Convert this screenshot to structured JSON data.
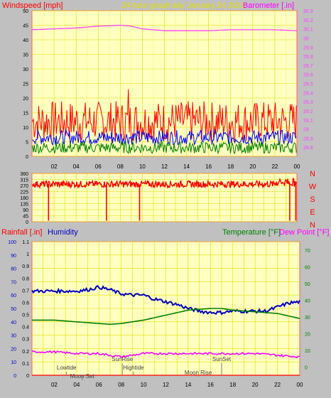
{
  "header": {
    "windspeed_label": "Windspeed [mph]",
    "title": "24 hour graph day   January 24 2021",
    "barometer_label": "Barometer [.in]"
  },
  "colors": {
    "background": "#c0c0c0",
    "plot_bg": "#ffffc0",
    "grid": "#e0e000",
    "axis": "#ff6060",
    "wind_gust": "#ff0000",
    "wind_avg": "#0000ff",
    "wind_low": "#008000",
    "barometer": "#ff40ff",
    "direction": "#ff0000",
    "humidity": "#0000c0",
    "temperature": "#008000",
    "dew_point": "#ff00ff",
    "rainfall": "#ff0000"
  },
  "chart_data": [
    {
      "type": "line",
      "name": "wind-barometer",
      "x_ticks": [
        "02",
        "04",
        "06",
        "08",
        "10",
        "12",
        "14",
        "16",
        "18",
        "20",
        "22",
        "00"
      ],
      "y_left_ticks": [
        "0",
        "5",
        "10",
        "15",
        "20",
        "25",
        "30",
        "35",
        "40",
        "45",
        "50"
      ],
      "y_left_range": [
        0,
        50
      ],
      "y_right_ticks": [
        "28.8",
        "28.9",
        "29",
        "29.1",
        "29.2",
        "29.3",
        "29.4",
        "29.5",
        "29.6",
        "29.7",
        "29.8",
        "29.9",
        "30",
        "30.1",
        "30.2",
        "30.3"
      ],
      "y_right_range": [
        28.7,
        30.3
      ],
      "grid": true,
      "series": [
        {
          "name": "Windspeed gust",
          "level": 12,
          "spread": 7,
          "peak": {
            "x": 8.75,
            "y": 23
          }
        },
        {
          "name": "Windspeed avg",
          "level": 6.5,
          "spread": 2.5
        },
        {
          "name": "Windspeed low",
          "level": 3,
          "spread": 2
        },
        {
          "name": "Barometer",
          "x": [
            0,
            2,
            4,
            6,
            8,
            9,
            10,
            12,
            14,
            16,
            18,
            20,
            22,
            24
          ],
          "y": [
            30.09,
            30.1,
            30.11,
            30.13,
            30.14,
            30.13,
            30.1,
            30.08,
            30.08,
            30.08,
            30.09,
            30.09,
            30.09,
            30.08
          ]
        }
      ]
    },
    {
      "type": "scatter",
      "name": "wind-direction",
      "y_ticks": [
        "360",
        "315",
        "270",
        "225",
        "180",
        "135",
        "90",
        "45",
        "0"
      ],
      "y_range": [
        0,
        360
      ],
      "compass_labels": [
        "N",
        "W",
        "S",
        "E",
        "N"
      ],
      "grid": true,
      "series": [
        {
          "name": "Direction",
          "level": 280,
          "spread": 25,
          "drops_x": [
            1.5,
            6.75,
            9.75,
            23.35,
            23.9
          ]
        }
      ]
    },
    {
      "type": "line",
      "name": "humidity-temperature",
      "labels": {
        "rainfall": "Rainfall [.in]",
        "humidity": "Humidity",
        "temperature": "Temperature [°F]",
        "dew_point": "Dew Point [°F]"
      },
      "y_humidity_ticks": [
        "0",
        "10",
        "20",
        "30",
        "40",
        "50",
        "60",
        "70",
        "80",
        "90",
        "100"
      ],
      "y_humidity_range": [
        0,
        100
      ],
      "y_rain_ticks": [
        "0",
        "0.1",
        "0.2",
        "0.3",
        "0.4",
        "0.5",
        "0.6",
        "0.7",
        "0.8",
        "0.9",
        "1",
        "1.1"
      ],
      "y_rain_range": [
        0,
        1.1
      ],
      "y_temp_ticks": [
        "0",
        "10",
        "20",
        "30",
        "40",
        "50",
        "60",
        "70"
      ],
      "y_temp_range": [
        -5,
        75
      ],
      "grid": true,
      "series": [
        {
          "name": "Humidity",
          "x": [
            0,
            1,
            2,
            3,
            4,
            5,
            6,
            7,
            8,
            9,
            10,
            11,
            12,
            13,
            14,
            15,
            16,
            17,
            18,
            19,
            20,
            21,
            22,
            23,
            24
          ],
          "y": [
            63,
            63,
            63,
            63,
            63,
            64,
            66,
            64,
            61,
            60,
            60,
            57,
            55,
            53,
            50,
            48,
            47,
            47,
            48,
            48,
            48,
            48,
            51,
            54,
            55
          ]
        },
        {
          "name": "Temperature",
          "x": [
            0,
            2,
            4,
            6,
            7,
            8,
            10,
            12,
            14,
            16,
            17,
            18,
            20,
            22,
            24
          ],
          "y": [
            28,
            28,
            27,
            26,
            25.5,
            26,
            28,
            31,
            34,
            35,
            35,
            34,
            33,
            32,
            29
          ]
        },
        {
          "name": "Dew Point",
          "x": [
            0,
            2,
            4,
            6,
            8,
            10,
            12,
            14,
            16,
            18,
            20,
            22,
            24
          ],
          "y": [
            9,
            9,
            8,
            8,
            6,
            8,
            8,
            8,
            8,
            8,
            8,
            7,
            6
          ]
        },
        {
          "name": "Rainfall",
          "x": [
            0,
            24
          ],
          "y": [
            0,
            0
          ]
        }
      ],
      "annotations": [
        {
          "text": "Lowtide",
          "x": 3.1
        },
        {
          "text": "Moon Set",
          "x": 4.5
        },
        {
          "text": "SunRise",
          "x": 8.1
        },
        {
          "text": "Hightide",
          "x": 9.1
        },
        {
          "text": "Moon Rise",
          "x": 14.9
        },
        {
          "text": "SunSet",
          "x": 17.0
        }
      ]
    }
  ]
}
